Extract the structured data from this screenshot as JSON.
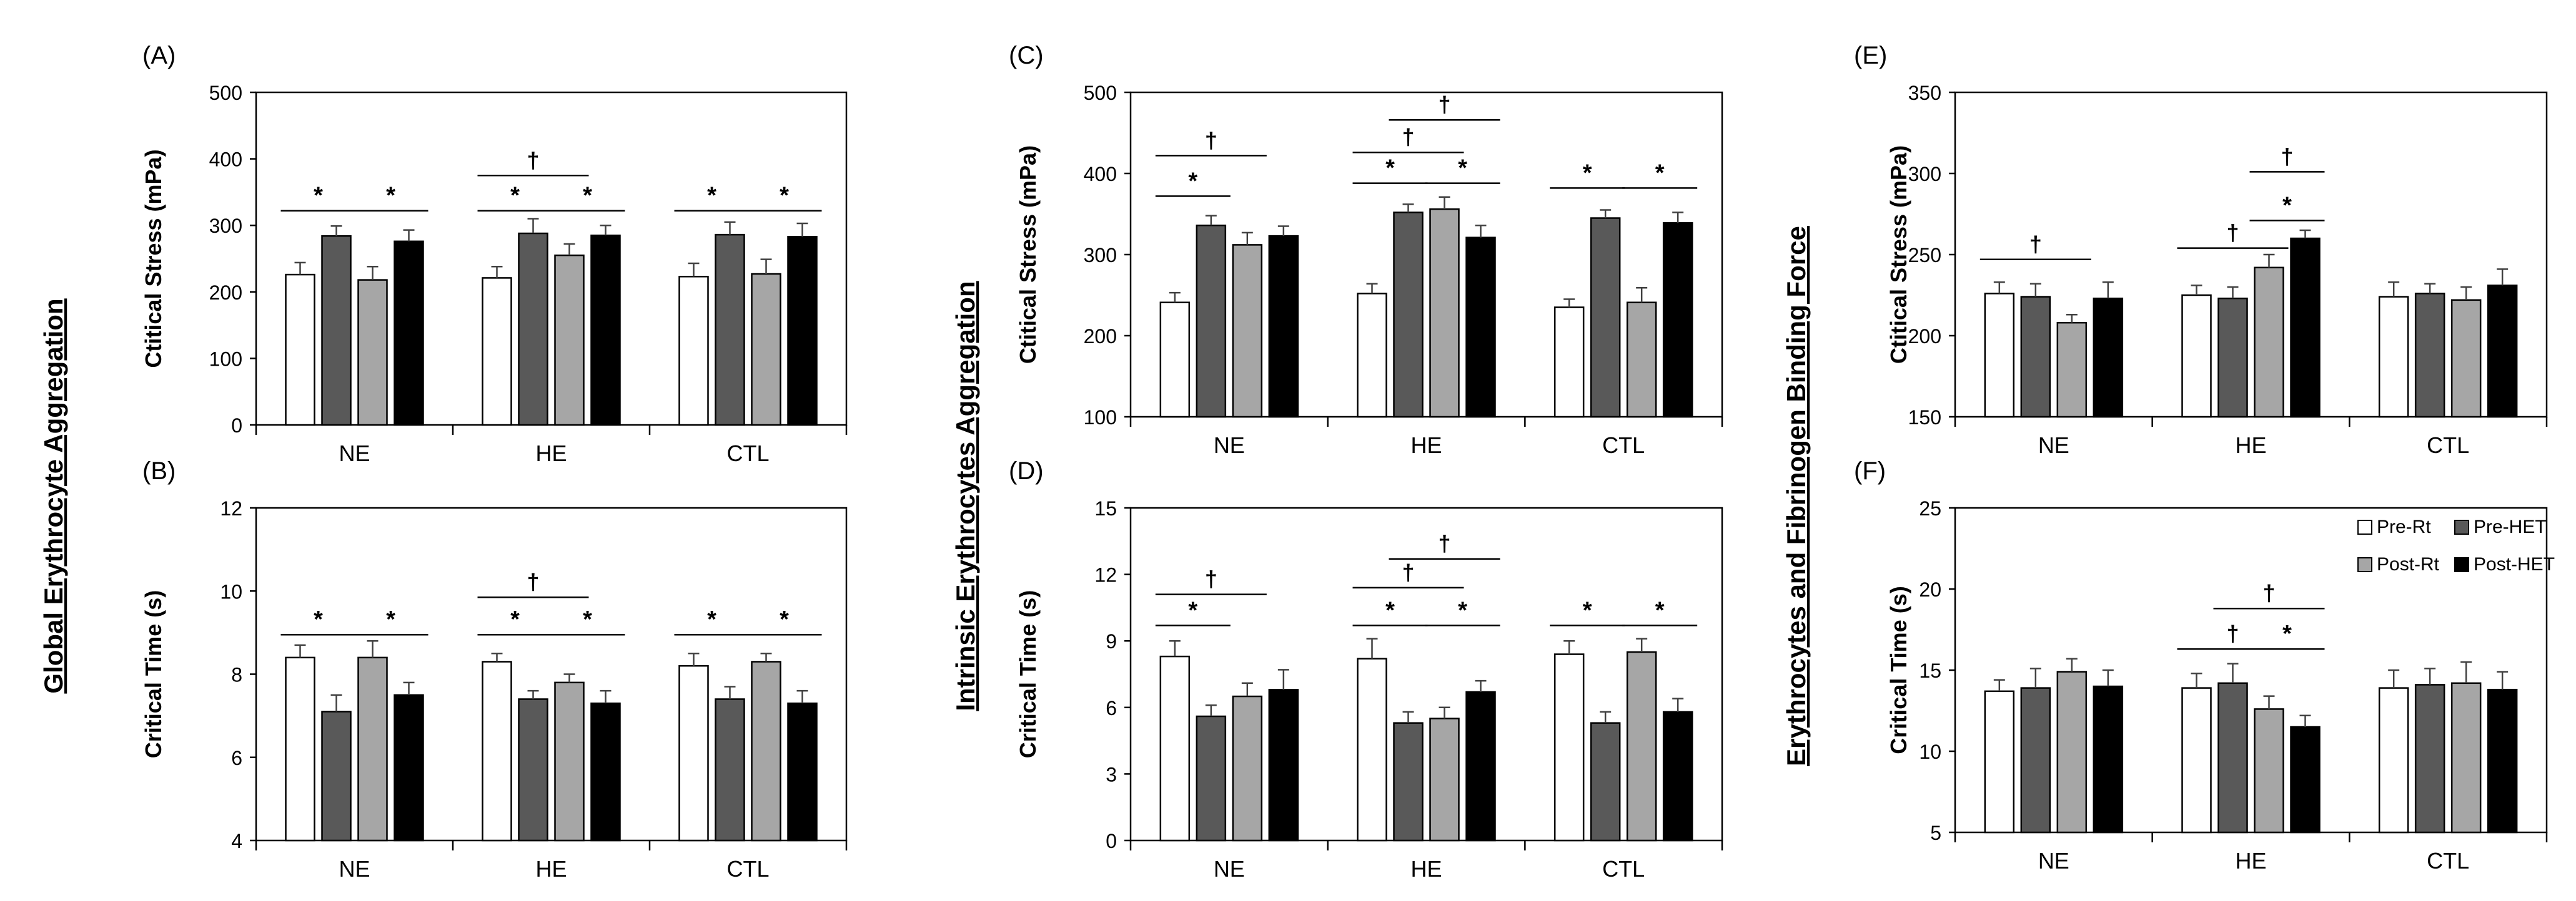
{
  "figure": {
    "group_titles": [
      "Global Erythrocyte Aggregation",
      "Intrinsic Erythrocytes Aggregation",
      "Erythrocytes and Fibrinogen Binding Force"
    ],
    "legend": [
      {
        "label": "Pre-Rt",
        "color": "#ffffff"
      },
      {
        "label": "Pre-HET",
        "color": "#595959"
      },
      {
        "label": "Post-Rt",
        "color": "#a6a6a6"
      },
      {
        "label": "Post-HET",
        "color": "#000000"
      }
    ]
  },
  "chart_data": [
    {
      "id": "A",
      "panel_label": "(A)",
      "type": "bar",
      "ylabel": "Ctitical Stress (mPa)",
      "ylim": [
        0,
        500
      ],
      "yticks": [
        "0",
        "100",
        "200",
        "300",
        "400",
        "500"
      ],
      "categories": [
        "NE",
        "HE",
        "CTL"
      ],
      "series": [
        {
          "name": "Pre-Rt",
          "values": [
            226,
            221,
            223
          ],
          "errors": [
            18,
            17,
            20
          ]
        },
        {
          "name": "Pre-HET",
          "values": [
            284,
            288,
            286
          ],
          "errors": [
            15,
            22,
            19
          ]
        },
        {
          "name": "Post-Rt",
          "values": [
            218,
            255,
            227
          ],
          "errors": [
            20,
            17,
            22
          ]
        },
        {
          "name": "Post-HET",
          "values": [
            276,
            285,
            283
          ],
          "errors": [
            17,
            15,
            20
          ]
        }
      ],
      "annotations": [
        {
          "text": "*",
          "cat": 0,
          "from": 0,
          "to": 1,
          "y": 322
        },
        {
          "text": "*",
          "cat": 0,
          "from": 2,
          "to": 3,
          "y": 322
        },
        {
          "text": "*",
          "cat": 1,
          "from": 0,
          "to": 1,
          "y": 322
        },
        {
          "text": "*",
          "cat": 1,
          "from": 2,
          "to": 3,
          "y": 322
        },
        {
          "text": "†",
          "cat": 1,
          "from": 0,
          "to": 2,
          "y": 375
        },
        {
          "text": "*",
          "cat": 2,
          "from": 0,
          "to": 1,
          "y": 322
        },
        {
          "text": "*",
          "cat": 2,
          "from": 2,
          "to": 3,
          "y": 322
        }
      ]
    },
    {
      "id": "B",
      "panel_label": "(B)",
      "type": "bar",
      "ylabel": "Critical Time  (s)",
      "ylim": [
        4,
        12
      ],
      "yticks": [
        "4",
        "6",
        "8",
        "10",
        "12"
      ],
      "categories": [
        "NE",
        "HE",
        "CTL"
      ],
      "series": [
        {
          "name": "Pre-Rt",
          "values": [
            8.4,
            8.3,
            8.2
          ],
          "errors": [
            0.3,
            0.2,
            0.3
          ]
        },
        {
          "name": "Pre-HET",
          "values": [
            7.1,
            7.4,
            7.4
          ],
          "errors": [
            0.4,
            0.2,
            0.3
          ]
        },
        {
          "name": "Post-Rt",
          "values": [
            8.4,
            7.8,
            8.3
          ],
          "errors": [
            0.4,
            0.2,
            0.2
          ]
        },
        {
          "name": "Post-HET",
          "values": [
            7.5,
            7.3,
            7.3
          ],
          "errors": [
            0.3,
            0.3,
            0.3
          ]
        }
      ],
      "annotations": [
        {
          "text": "*",
          "cat": 0,
          "from": 0,
          "to": 1,
          "y": 8.95
        },
        {
          "text": "*",
          "cat": 0,
          "from": 2,
          "to": 3,
          "y": 8.95
        },
        {
          "text": "*",
          "cat": 1,
          "from": 0,
          "to": 1,
          "y": 8.95
        },
        {
          "text": "*",
          "cat": 1,
          "from": 2,
          "to": 3,
          "y": 8.95
        },
        {
          "text": "†",
          "cat": 1,
          "from": 0,
          "to": 2,
          "y": 9.85
        },
        {
          "text": "*",
          "cat": 2,
          "from": 0,
          "to": 1,
          "y": 8.95
        },
        {
          "text": "*",
          "cat": 2,
          "from": 2,
          "to": 3,
          "y": 8.95
        }
      ]
    },
    {
      "id": "C",
      "panel_label": "(C)",
      "type": "bar",
      "ylabel": "Ctitical Stress (mPa)",
      "ylim": [
        100,
        500
      ],
      "yticks": [
        "100",
        "200",
        "300",
        "400",
        "500"
      ],
      "categories": [
        "NE",
        "HE",
        "CTL"
      ],
      "series": [
        {
          "name": "Pre-Rt",
          "values": [
            241,
            252,
            235
          ],
          "errors": [
            12,
            12,
            10
          ]
        },
        {
          "name": "Pre-HET",
          "values": [
            336,
            352,
            345
          ],
          "errors": [
            12,
            10,
            10
          ]
        },
        {
          "name": "Post-Rt",
          "values": [
            312,
            356,
            241
          ],
          "errors": [
            15,
            15,
            18
          ]
        },
        {
          "name": "Post-HET",
          "values": [
            323,
            321,
            339
          ],
          "errors": [
            12,
            15,
            13
          ]
        }
      ],
      "annotations": [
        {
          "text": "*",
          "cat": 0,
          "from": 0,
          "to": 1,
          "y": 372
        },
        {
          "text": "†",
          "cat": 0,
          "from": 0,
          "to": 2,
          "y": 422
        },
        {
          "text": "*",
          "cat": 1,
          "from": 0,
          "to": 1,
          "y": 388
        },
        {
          "text": "*",
          "cat": 1,
          "from": 2,
          "to": 3,
          "y": 388
        },
        {
          "text": "†",
          "cat": 1,
          "from": 0,
          "to": 2,
          "y": 426
        },
        {
          "text": "†",
          "cat": 1,
          "from": 1,
          "to": 3,
          "y": 466
        },
        {
          "text": "*",
          "cat": 2,
          "from": 0,
          "to": 1,
          "y": 382
        },
        {
          "text": "*",
          "cat": 2,
          "from": 2,
          "to": 3,
          "y": 382
        }
      ]
    },
    {
      "id": "D",
      "panel_label": "(D)",
      "type": "bar",
      "ylabel": "Critical Time  (s)",
      "ylim": [
        0,
        15
      ],
      "yticks": [
        "0",
        "3",
        "6",
        "9",
        "12",
        "15"
      ],
      "categories": [
        "NE",
        "HE",
        "CTL"
      ],
      "series": [
        {
          "name": "Pre-Rt",
          "values": [
            8.3,
            8.2,
            8.4
          ],
          "errors": [
            0.7,
            0.9,
            0.6
          ]
        },
        {
          "name": "Pre-HET",
          "values": [
            5.6,
            5.3,
            5.3
          ],
          "errors": [
            0.5,
            0.5,
            0.5
          ]
        },
        {
          "name": "Post-Rt",
          "values": [
            6.5,
            5.5,
            8.5
          ],
          "errors": [
            0.6,
            0.5,
            0.6
          ]
        },
        {
          "name": "Post-HET",
          "values": [
            6.8,
            6.7,
            5.8
          ],
          "errors": [
            0.9,
            0.5,
            0.6
          ]
        }
      ],
      "annotations": [
        {
          "text": "*",
          "cat": 0,
          "from": 0,
          "to": 1,
          "y": 9.7
        },
        {
          "text": "†",
          "cat": 0,
          "from": 0,
          "to": 2,
          "y": 11.1
        },
        {
          "text": "*",
          "cat": 1,
          "from": 0,
          "to": 1,
          "y": 9.7
        },
        {
          "text": "*",
          "cat": 1,
          "from": 2,
          "to": 3,
          "y": 9.7
        },
        {
          "text": "†",
          "cat": 1,
          "from": 0,
          "to": 2,
          "y": 11.4
        },
        {
          "text": "†",
          "cat": 1,
          "from": 1,
          "to": 3,
          "y": 12.7
        },
        {
          "text": "*",
          "cat": 2,
          "from": 0,
          "to": 1,
          "y": 9.7
        },
        {
          "text": "*",
          "cat": 2,
          "from": 2,
          "to": 3,
          "y": 9.7
        }
      ]
    },
    {
      "id": "E",
      "panel_label": "(E)",
      "type": "bar",
      "ylabel": "Ctitical Stress (mPa)",
      "ylim": [
        150,
        350
      ],
      "yticks": [
        "150",
        "200",
        "250",
        "300",
        "350"
      ],
      "categories": [
        "NE",
        "HE",
        "CTL"
      ],
      "series": [
        {
          "name": "Pre-Rt",
          "values": [
            226,
            225,
            224
          ],
          "errors": [
            7,
            6,
            9
          ]
        },
        {
          "name": "Pre-HET",
          "values": [
            224,
            223,
            226
          ],
          "errors": [
            8,
            7,
            6
          ]
        },
        {
          "name": "Post-Rt",
          "values": [
            208,
            242,
            222
          ],
          "errors": [
            5,
            8,
            8
          ]
        },
        {
          "name": "Post-HET",
          "values": [
            223,
            260,
            231
          ],
          "errors": [
            10,
            5,
            10
          ]
        }
      ],
      "annotations": [
        {
          "text": "†",
          "cat": 0,
          "from": 0,
          "to": 2,
          "y": 247
        },
        {
          "text": "†",
          "cat": 1,
          "from": 0,
          "to": 2,
          "y": 254
        },
        {
          "text": "*",
          "cat": 1,
          "from": 2,
          "to": 3,
          "y": 271
        },
        {
          "text": "†",
          "cat": 1,
          "from": 2,
          "to": 3,
          "y": 301
        }
      ]
    },
    {
      "id": "F",
      "panel_label": "(F)",
      "type": "bar",
      "ylabel": "Critical Time  (s)",
      "ylim": [
        5,
        25
      ],
      "yticks": [
        "5",
        "10",
        "15",
        "20",
        "25"
      ],
      "categories": [
        "NE",
        "HE",
        "CTL"
      ],
      "series": [
        {
          "name": "Pre-Rt",
          "values": [
            13.7,
            13.9,
            13.9
          ],
          "errors": [
            0.7,
            0.9,
            1.1
          ]
        },
        {
          "name": "Pre-HET",
          "values": [
            13.9,
            14.2,
            14.1
          ],
          "errors": [
            1.2,
            1.2,
            1.0
          ]
        },
        {
          "name": "Post-Rt",
          "values": [
            14.9,
            12.6,
            14.2
          ],
          "errors": [
            0.8,
            0.8,
            1.3
          ]
        },
        {
          "name": "Post-HET",
          "values": [
            14.0,
            11.5,
            13.8
          ],
          "errors": [
            1.0,
            0.7,
            1.1
          ]
        }
      ],
      "annotations": [
        {
          "text": "†",
          "cat": 1,
          "from": 0,
          "to": 2,
          "y": 16.3
        },
        {
          "text": "*",
          "cat": 1,
          "from": 2,
          "to": 3,
          "y": 16.3
        },
        {
          "text": "†",
          "cat": 1,
          "from": 1,
          "to": 3,
          "y": 18.8
        }
      ],
      "show_legend": true
    }
  ]
}
